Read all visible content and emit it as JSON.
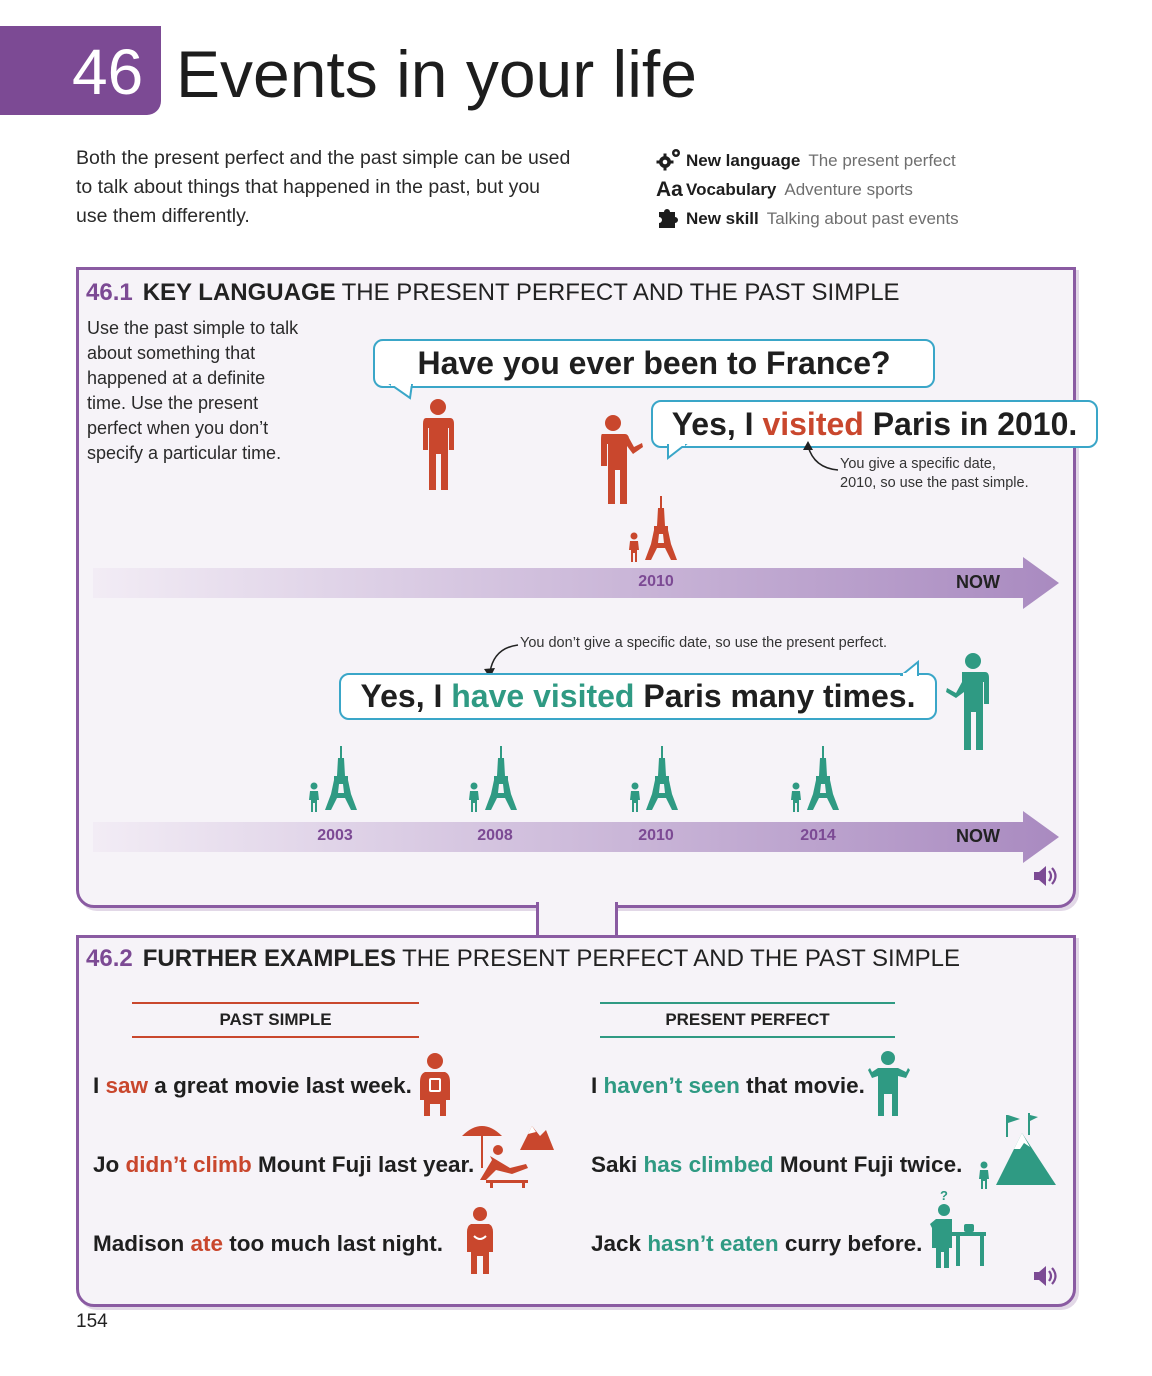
{
  "header": {
    "unit_number": "46",
    "title": "Events in your life"
  },
  "intro": "Both the present perfect and the past simple can be used to talk about things that happened in the past, but you use them differently.",
  "goals": [
    {
      "icon": "gears-icon",
      "label": "New language",
      "value": "The present perfect"
    },
    {
      "icon": "vocabulary-aa-icon",
      "label": "Vocabulary",
      "value": "Adventure sports"
    },
    {
      "icon": "puzzle-icon",
      "label": "New skill",
      "value": "Talking about past events"
    }
  ],
  "section1": {
    "number": "46.1",
    "key": "KEY LANGUAGE",
    "title": "THE PRESENT PERFECT AND THE PAST SIMPLE",
    "note": "Use the past simple to talk about something that happened at a definite time. Use the present perfect when you don’t specify a particular time.",
    "question": "Have you ever been to France?",
    "answer_past": {
      "pre": "Yes, I ",
      "verb": "visited",
      "post": " Paris in 2010."
    },
    "annotation_past": [
      "You give a specific date,",
      "2010, so use the past simple."
    ],
    "timeline1": {
      "year": "2010",
      "now": "NOW"
    },
    "annotation_perfect": "You don’t give a specific date, so use the present perfect.",
    "answer_perfect": {
      "pre": "Yes, I ",
      "verb": "have visited",
      "post": " Paris many times."
    },
    "timeline2": {
      "years": [
        "2003",
        "2008",
        "2010",
        "2014"
      ],
      "now": "NOW"
    }
  },
  "section2": {
    "number": "46.2",
    "key": "FURTHER EXAMPLES",
    "title": "THE PRESENT PERFECT AND THE PAST SIMPLE",
    "past_heading": "PAST SIMPLE",
    "perfect_heading": "PRESENT PERFECT",
    "past_examples": [
      {
        "pre": "I ",
        "verb": "saw",
        "post": " a great movie last week."
      },
      {
        "pre": "Jo ",
        "verb": "didn’t climb",
        "post": " Mount Fuji last year."
      },
      {
        "pre": "Madison ",
        "verb": "ate",
        "post": " too much last night."
      }
    ],
    "perfect_examples": [
      {
        "pre": "I ",
        "verb": "haven’t seen",
        "post": " that movie."
      },
      {
        "pre": "Saki ",
        "verb": "has climbed",
        "post": " Mount Fuji twice."
      },
      {
        "pre": "Jack ",
        "verb": "hasn’t eaten",
        "post": " curry before."
      }
    ]
  },
  "page_number": "154",
  "colors": {
    "purple": "#7c4a94",
    "red": "#c9472d",
    "teal": "#2f9a83",
    "bubble_border": "#3aa6c8"
  }
}
